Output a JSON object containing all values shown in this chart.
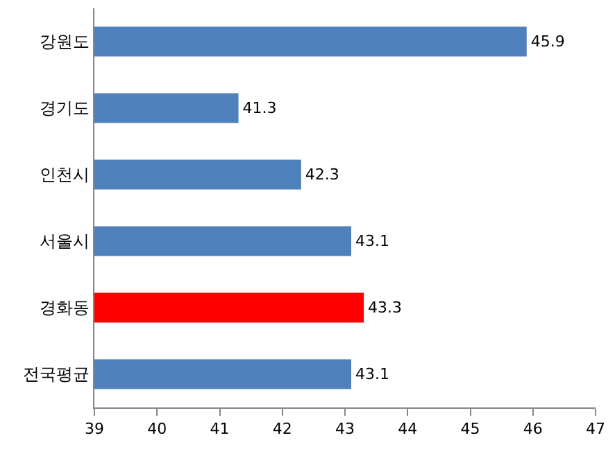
{
  "chart_data": {
    "type": "bar",
    "orientation": "horizontal",
    "categories": [
      "강원도",
      "경기도",
      "인천시",
      "서울시",
      "경화동",
      "전국평균"
    ],
    "values": [
      45.9,
      41.3,
      42.3,
      43.1,
      43.3,
      43.1
    ],
    "colors": [
      "#4f81bd",
      "#4f81bd",
      "#4f81bd",
      "#4f81bd",
      "#ff0000",
      "#4f81bd"
    ],
    "xlim": [
      39,
      47
    ],
    "xticks": [
      39,
      40,
      41,
      42,
      43,
      44,
      45,
      46,
      47
    ],
    "data_labels": true
  }
}
